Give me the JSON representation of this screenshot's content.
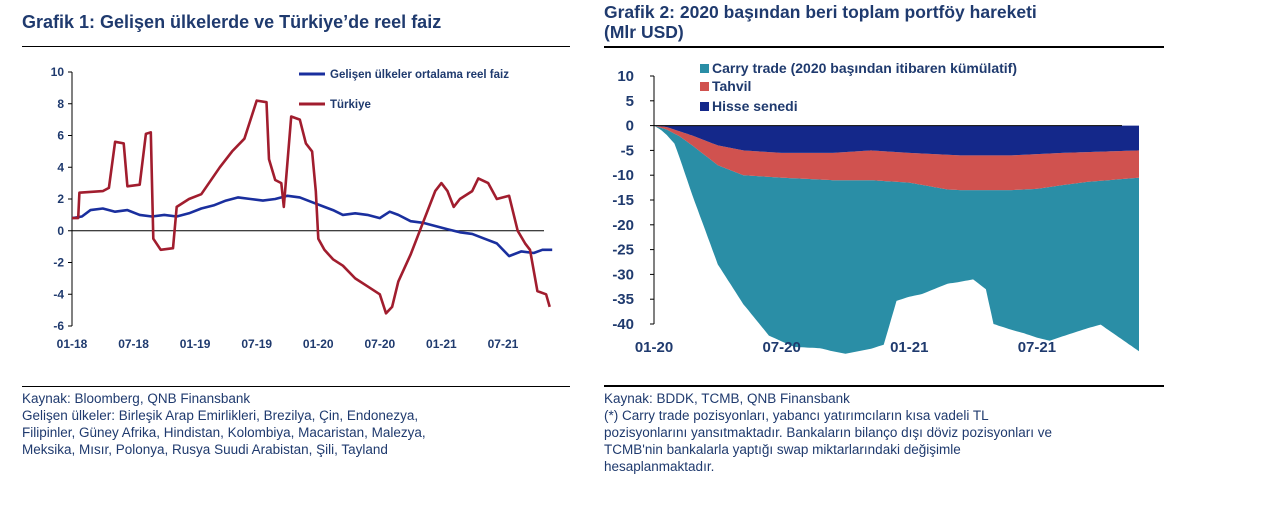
{
  "left": {
    "title": "Grafik 1: Gelişen ülkelerde ve Türkiye’de reel faiz",
    "source": "Kaynak: Bloomberg, QNB Finansbank",
    "notes": [
      "Gelişen ülkeler: Birleşik Arap Emirlikleri, Brezilya, Çin, Endonezya,",
      "Filipinler, Güney Afrika, Hindistan, Kolombiya, Macaristan, Malezya,",
      "Meksika, Mısır, Polonya, Rusya Suudi Arabistan, Şili, Tayland"
    ]
  },
  "right": {
    "title_lines": [
      "Grafik 2: 2020 başından beri toplam portföy hareketi",
      "(Mlr USD)"
    ],
    "source": "Kaynak: BDDK, TCMB, QNB Finansbank",
    "notes": [
      "(*) Carry trade pozisyonları, yabancı yatırımcıların kısa vadeli TL",
      "pozisyonlarını yansıtmaktadır. Bankaların bilanço dışı döviz pozisyonları ve",
      "TCMB'nin bankalarla yaptığı swap miktarlarındaki değişimle",
      "hesaplanmaktadır."
    ]
  },
  "chart_data": [
    {
      "type": "line",
      "x_ticks": [
        "01-18",
        "07-18",
        "01-19",
        "07-19",
        "01-20",
        "07-20",
        "01-21",
        "07-21"
      ],
      "x_range": [
        "2018-01",
        "2021-11"
      ],
      "ylim": [
        -6,
        10
      ],
      "y_ticks": [
        10,
        8,
        6,
        4,
        2,
        0,
        -2,
        -4,
        -6
      ],
      "legend_position": "top-right",
      "series": [
        {
          "name": "Gelişen ülkeler ortalama reel faiz",
          "color": "#1a2f9e",
          "points": [
            [
              2018.0,
              0.8
            ],
            [
              2018.08,
              0.9
            ],
            [
              2018.15,
              1.3
            ],
            [
              2018.25,
              1.4
            ],
            [
              2018.35,
              1.2
            ],
            [
              2018.45,
              1.3
            ],
            [
              2018.55,
              1.0
            ],
            [
              2018.65,
              0.9
            ],
            [
              2018.75,
              1.0
            ],
            [
              2018.85,
              0.9
            ],
            [
              2018.95,
              1.1
            ],
            [
              2019.05,
              1.4
            ],
            [
              2019.15,
              1.6
            ],
            [
              2019.25,
              1.9
            ],
            [
              2019.35,
              2.1
            ],
            [
              2019.45,
              2.0
            ],
            [
              2019.55,
              1.9
            ],
            [
              2019.65,
              2.0
            ],
            [
              2019.75,
              2.2
            ],
            [
              2019.85,
              2.1
            ],
            [
              2019.95,
              1.8
            ],
            [
              2020.05,
              1.5
            ],
            [
              2020.12,
              1.3
            ],
            [
              2020.2,
              1.0
            ],
            [
              2020.3,
              1.1
            ],
            [
              2020.4,
              1.0
            ],
            [
              2020.5,
              0.8
            ],
            [
              2020.58,
              1.2
            ],
            [
              2020.65,
              1.0
            ],
            [
              2020.75,
              0.6
            ],
            [
              2020.85,
              0.5
            ],
            [
              2020.95,
              0.3
            ],
            [
              2021.05,
              0.1
            ],
            [
              2021.15,
              -0.1
            ],
            [
              2021.25,
              -0.2
            ],
            [
              2021.35,
              -0.5
            ],
            [
              2021.45,
              -0.8
            ],
            [
              2021.55,
              -1.6
            ],
            [
              2021.65,
              -1.3
            ],
            [
              2021.75,
              -1.4
            ],
            [
              2021.82,
              -1.2
            ],
            [
              2021.9,
              -1.2
            ]
          ]
        },
        {
          "name": "Türkiye",
          "color": "#a11d2e",
          "points": [
            [
              2018.0,
              0.8
            ],
            [
              2018.05,
              0.8
            ],
            [
              2018.06,
              2.4
            ],
            [
              2018.25,
              2.5
            ],
            [
              2018.3,
              2.7
            ],
            [
              2018.35,
              5.6
            ],
            [
              2018.42,
              5.5
            ],
            [
              2018.45,
              2.8
            ],
            [
              2018.55,
              2.9
            ],
            [
              2018.6,
              6.1
            ],
            [
              2018.64,
              6.2
            ],
            [
              2018.66,
              -0.5
            ],
            [
              2018.72,
              -1.2
            ],
            [
              2018.82,
              -1.1
            ],
            [
              2018.85,
              1.5
            ],
            [
              2018.95,
              2.0
            ],
            [
              2019.05,
              2.3
            ],
            [
              2019.2,
              4.0
            ],
            [
              2019.3,
              5.0
            ],
            [
              2019.4,
              5.8
            ],
            [
              2019.5,
              8.2
            ],
            [
              2019.58,
              8.1
            ],
            [
              2019.6,
              4.5
            ],
            [
              2019.65,
              3.2
            ],
            [
              2019.7,
              3.0
            ],
            [
              2019.72,
              1.5
            ],
            [
              2019.78,
              7.2
            ],
            [
              2019.85,
              7.0
            ],
            [
              2019.9,
              5.5
            ],
            [
              2019.95,
              5.0
            ],
            [
              2019.98,
              2.5
            ],
            [
              2020.0,
              -0.5
            ],
            [
              2020.05,
              -1.2
            ],
            [
              2020.12,
              -1.8
            ],
            [
              2020.2,
              -2.2
            ],
            [
              2020.3,
              -3.0
            ],
            [
              2020.4,
              -3.5
            ],
            [
              2020.5,
              -4.0
            ],
            [
              2020.55,
              -5.2
            ],
            [
              2020.6,
              -4.8
            ],
            [
              2020.65,
              -3.2
            ],
            [
              2020.75,
              -1.5
            ],
            [
              2020.85,
              0.5
            ],
            [
              2020.95,
              2.5
            ],
            [
              2021.0,
              3.0
            ],
            [
              2021.05,
              2.5
            ],
            [
              2021.1,
              1.5
            ],
            [
              2021.15,
              2.0
            ],
            [
              2021.25,
              2.5
            ],
            [
              2021.3,
              3.3
            ],
            [
              2021.38,
              3.0
            ],
            [
              2021.45,
              2.0
            ],
            [
              2021.55,
              2.2
            ],
            [
              2021.62,
              0.0
            ],
            [
              2021.68,
              -0.8
            ],
            [
              2021.72,
              -1.2
            ],
            [
              2021.78,
              -3.8
            ],
            [
              2021.85,
              -4.0
            ],
            [
              2021.88,
              -4.8
            ]
          ]
        }
      ]
    },
    {
      "type": "area",
      "stacked": true,
      "x_ticks": [
        "01-20",
        "07-20",
        "01-21",
        "07-21"
      ],
      "x_range": [
        "2020-01",
        "2021-11"
      ],
      "ylim": [
        -40,
        10
      ],
      "y_ticks": [
        10,
        5,
        0,
        -5,
        -10,
        -15,
        -20,
        -25,
        -30,
        -35,
        -40
      ],
      "legend_position": "top",
      "series": [
        {
          "name": "Carry trade (2020 başından itibaren kümülatif)",
          "color": "#2a8ea6",
          "values": [
            [
              2020.0,
              0
            ],
            [
              2020.03,
              -0.5
            ],
            [
              2020.08,
              -2
            ],
            [
              2020.15,
              -10
            ],
            [
              2020.25,
              -20
            ],
            [
              2020.35,
              -26
            ],
            [
              2020.45,
              -32
            ],
            [
              2020.55,
              -34
            ],
            [
              2020.65,
              -34
            ],
            [
              2020.75,
              -35
            ],
            [
              2020.85,
              -34
            ],
            [
              2020.9,
              -33
            ],
            [
              2020.95,
              -24
            ],
            [
              2021.05,
              -22
            ],
            [
              2021.15,
              -19
            ],
            [
              2021.25,
              -18
            ],
            [
              2021.3,
              -20
            ],
            [
              2021.33,
              -27
            ],
            [
              2021.45,
              -29
            ],
            [
              2021.55,
              -31
            ],
            [
              2021.65,
              -30
            ],
            [
              2021.75,
              -29
            ],
            [
              2021.85,
              -33
            ],
            [
              2021.9,
              -35
            ]
          ]
        },
        {
          "name": "Tahvil",
          "color": "#d0524f",
          "values": [
            [
              2020.0,
              0
            ],
            [
              2020.05,
              -0.5
            ],
            [
              2020.1,
              -1
            ],
            [
              2020.15,
              -2
            ],
            [
              2020.25,
              -4
            ],
            [
              2020.35,
              -5
            ],
            [
              2020.5,
              -5
            ],
            [
              2020.7,
              -5.5
            ],
            [
              2020.85,
              -6
            ],
            [
              2021.0,
              -6
            ],
            [
              2021.15,
              -7
            ],
            [
              2021.3,
              -7
            ],
            [
              2021.5,
              -7
            ],
            [
              2021.7,
              -6
            ],
            [
              2021.9,
              -5.5
            ]
          ]
        },
        {
          "name": "Hisse senedi",
          "color": "#14288a",
          "values": [
            [
              2020.0,
              0
            ],
            [
              2020.05,
              -0.3
            ],
            [
              2020.15,
              -2
            ],
            [
              2020.25,
              -4
            ],
            [
              2020.35,
              -5
            ],
            [
              2020.5,
              -5.5
            ],
            [
              2020.7,
              -5.5
            ],
            [
              2020.85,
              -5
            ],
            [
              2021.0,
              -5.5
            ],
            [
              2021.2,
              -6
            ],
            [
              2021.4,
              -6
            ],
            [
              2021.6,
              -5.5
            ],
            [
              2021.9,
              -5
            ]
          ]
        }
      ]
    }
  ]
}
